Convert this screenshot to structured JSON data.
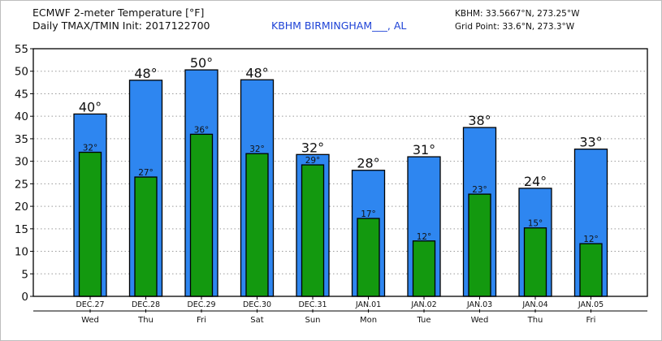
{
  "header": {
    "line1": "ECMWF 2-meter Temperature [°F]",
    "line2": "Daily TMAX/TMIN Init: 2017122700",
    "station": "KBHM BIRMINGHAM___, AL",
    "coords": "KBHM: 33.5667°N, 273.25°W",
    "grid": "Grid Point: 33.6°N, 273.3°W"
  },
  "colors": {
    "tmax_fill": "#2e86f0",
    "tmin_fill": "#13990f",
    "grid": "#9a9a9a"
  },
  "chart_data": {
    "type": "bar",
    "title": "ECMWF 2-meter Temperature [°F]",
    "ylim": [
      0,
      55
    ],
    "yticks": [
      0,
      5,
      10,
      15,
      20,
      25,
      30,
      35,
      40,
      45,
      50,
      55
    ],
    "categories": [
      "DEC.27",
      "DEC.28",
      "DEC.29",
      "DEC.30",
      "DEC.31",
      "JAN.01",
      "JAN.02",
      "JAN.03",
      "JAN.04",
      "JAN.05"
    ],
    "days": [
      "Wed",
      "Thu",
      "Fri",
      "Sat",
      "Sun",
      "Mon",
      "Tue",
      "Wed",
      "Thu",
      "Fri"
    ],
    "series": [
      {
        "name": "TMAX",
        "values": [
          40.5,
          48,
          50.3,
          48.1,
          31.5,
          28,
          31,
          37.5,
          24,
          32.7
        ],
        "labels": [
          "40°",
          "48°",
          "50°",
          "48°",
          "32°",
          "28°",
          "31°",
          "38°",
          "24°",
          "33°"
        ]
      },
      {
        "name": "TMIN",
        "values": [
          32,
          26.5,
          36,
          31.7,
          29.2,
          17.3,
          12.3,
          22.7,
          15.2,
          11.7
        ],
        "labels": [
          "32°",
          "27°",
          "36°",
          "32°",
          "29°",
          "17°",
          "12°",
          "23°",
          "15°",
          "12°"
        ]
      }
    ]
  }
}
